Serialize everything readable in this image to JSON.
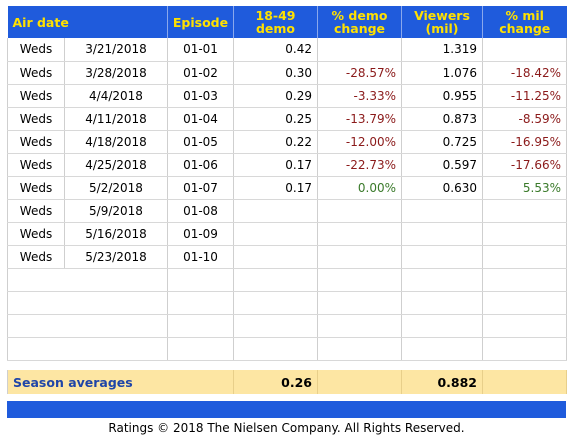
{
  "headers": {
    "air_date": "Air date",
    "episode": "Episode",
    "demo": "18-49 demo",
    "demo_change": "% demo change",
    "viewers": "Viewers (mil)",
    "mil_change": "% mil change"
  },
  "rows": [
    {
      "day": "Weds",
      "date": "3/21/2018",
      "episode": "01-01",
      "demo": "0.42",
      "demo_change": "",
      "viewers": "1.319",
      "mil_change": ""
    },
    {
      "day": "Weds",
      "date": "3/28/2018",
      "episode": "01-02",
      "demo": "0.30",
      "demo_change": "-28.57%",
      "viewers": "1.076",
      "mil_change": "-18.42%"
    },
    {
      "day": "Weds",
      "date": "4/4/2018",
      "episode": "01-03",
      "demo": "0.29",
      "demo_change": "-3.33%",
      "viewers": "0.955",
      "mil_change": "-11.25%"
    },
    {
      "day": "Weds",
      "date": "4/11/2018",
      "episode": "01-04",
      "demo": "0.25",
      "demo_change": "-13.79%",
      "viewers": "0.873",
      "mil_change": "-8.59%"
    },
    {
      "day": "Weds",
      "date": "4/18/2018",
      "episode": "01-05",
      "demo": "0.22",
      "demo_change": "-12.00%",
      "viewers": "0.725",
      "mil_change": "-16.95%"
    },
    {
      "day": "Weds",
      "date": "4/25/2018",
      "episode": "01-06",
      "demo": "0.17",
      "demo_change": "-22.73%",
      "viewers": "0.597",
      "mil_change": "-17.66%"
    },
    {
      "day": "Weds",
      "date": "5/2/2018",
      "episode": "01-07",
      "demo": "0.17",
      "demo_change": "0.00%",
      "viewers": "0.630",
      "mil_change": "5.53%"
    },
    {
      "day": "Weds",
      "date": "5/9/2018",
      "episode": "01-08",
      "demo": "",
      "demo_change": "",
      "viewers": "",
      "mil_change": ""
    },
    {
      "day": "Weds",
      "date": "5/16/2018",
      "episode": "01-09",
      "demo": "",
      "demo_change": "",
      "viewers": "",
      "mil_change": ""
    },
    {
      "day": "Weds",
      "date": "5/23/2018",
      "episode": "01-10",
      "demo": "",
      "demo_change": "",
      "viewers": "",
      "mil_change": ""
    }
  ],
  "empty_row_count": 4,
  "season_averages": {
    "label": "Season averages",
    "demo": "0.26",
    "viewers": "0.882"
  },
  "colors": {
    "header_bg": "#1f5bdc",
    "header_text": "#ffe100",
    "negative": "#8b1a1a",
    "positive": "#3a7a2a",
    "averages_bg": "#fde6a3"
  },
  "footer": "Ratings © 2018 The Nielsen Company. All Rights Reserved."
}
